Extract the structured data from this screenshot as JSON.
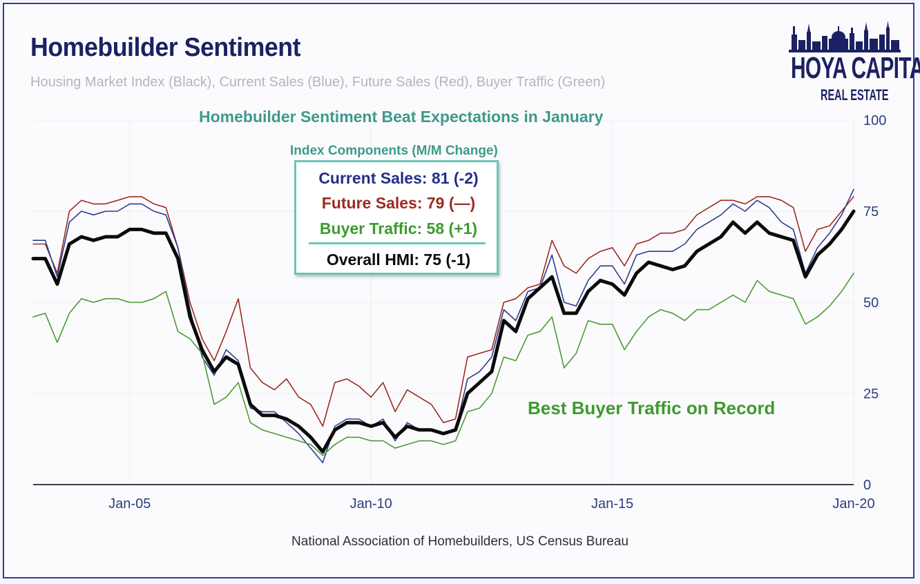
{
  "title": "Homebuilder Sentiment",
  "subtitle": "Housing Market Index (Black), Current Sales (Blue), Future Sales (Red), Buyer Traffic (Green)",
  "logo": {
    "line1": "HOYA CAPITAL",
    "line2": "REAL ESTATE"
  },
  "annotations": {
    "headline": "Homebuilder Sentiment Beat Expectations in January",
    "components_title": "Index Components (M/M Change)",
    "current_sales": "Current Sales: 81 (-2)",
    "future_sales": "Future Sales: 79 (—)",
    "buyer_traffic": "Buyer Traffic: 58 (+1)",
    "overall": "Overall HMI: 75 (-1)",
    "best_traffic": "Best Buyer Traffic on Record"
  },
  "source": "National Association of Homebuilders, US Census Bureau",
  "colors": {
    "hmi": "#0b0b0b",
    "current": "#2b3d8f",
    "future": "#9c2a22",
    "traffic": "#4a9a32",
    "teal": "#3d9a8c",
    "navy": "#1c2163"
  },
  "chart_data": {
    "type": "line",
    "title": "Homebuilder Sentiment",
    "xlabel": "",
    "ylabel": "",
    "xlim": [
      2003.0,
      2020.0
    ],
    "ylim": [
      0,
      100
    ],
    "x_ticks": [
      {
        "value": 2005.0,
        "label": "Jan-05"
      },
      {
        "value": 2010.0,
        "label": "Jan-10"
      },
      {
        "value": 2015.0,
        "label": "Jan-15"
      },
      {
        "value": 2020.0,
        "label": "Jan-20"
      }
    ],
    "y_ticks": [
      {
        "value": 0,
        "label": "0"
      },
      {
        "value": 25,
        "label": "25"
      },
      {
        "value": 50,
        "label": "50"
      },
      {
        "value": 75,
        "label": "75"
      },
      {
        "value": 100,
        "label": "100"
      }
    ],
    "grid": true,
    "series": [
      {
        "name": "Future Sales",
        "key": "future",
        "x": [
          2003.0,
          2003.25,
          2003.5,
          2003.75,
          2004.0,
          2004.25,
          2004.5,
          2004.75,
          2005.0,
          2005.25,
          2005.5,
          2005.75,
          2006.0,
          2006.25,
          2006.5,
          2006.75,
          2007.0,
          2007.25,
          2007.5,
          2007.75,
          2008.0,
          2008.25,
          2008.5,
          2008.75,
          2009.0,
          2009.25,
          2009.5,
          2009.75,
          2010.0,
          2010.25,
          2010.5,
          2010.75,
          2011.0,
          2011.25,
          2011.5,
          2011.75,
          2012.0,
          2012.25,
          2012.5,
          2012.75,
          2013.0,
          2013.25,
          2013.5,
          2013.75,
          2014.0,
          2014.25,
          2014.5,
          2014.75,
          2015.0,
          2015.25,
          2015.5,
          2015.75,
          2016.0,
          2016.25,
          2016.5,
          2016.75,
          2017.0,
          2017.25,
          2017.5,
          2017.75,
          2018.0,
          2018.25,
          2018.5,
          2018.75,
          2019.0,
          2019.25,
          2019.5,
          2019.75,
          2020.0
        ],
        "values": [
          66,
          66,
          58,
          75,
          78,
          77,
          77,
          78,
          79,
          79,
          77,
          76,
          65,
          50,
          40,
          34,
          42,
          51,
          32,
          28,
          26,
          29,
          24,
          22,
          16,
          28,
          29,
          27,
          24,
          28,
          20,
          26,
          24,
          22,
          17,
          18,
          35,
          36,
          37,
          50,
          51,
          54,
          55,
          67,
          60,
          58,
          62,
          64,
          65,
          60,
          66,
          67,
          69,
          69,
          70,
          74,
          76,
          78,
          78,
          77,
          79,
          79,
          78,
          76,
          64,
          70,
          71,
          75,
          79
        ]
      },
      {
        "name": "Current Sales",
        "key": "current",
        "x": [
          2003.0,
          2003.25,
          2003.5,
          2003.75,
          2004.0,
          2004.25,
          2004.5,
          2004.75,
          2005.0,
          2005.25,
          2005.5,
          2005.75,
          2006.0,
          2006.25,
          2006.5,
          2006.75,
          2007.0,
          2007.25,
          2007.5,
          2007.75,
          2008.0,
          2008.25,
          2008.5,
          2008.75,
          2009.0,
          2009.25,
          2009.5,
          2009.75,
          2010.0,
          2010.25,
          2010.5,
          2010.75,
          2011.0,
          2011.25,
          2011.5,
          2011.75,
          2012.0,
          2012.25,
          2012.5,
          2012.75,
          2013.0,
          2013.25,
          2013.5,
          2013.75,
          2014.0,
          2014.25,
          2014.5,
          2014.75,
          2015.0,
          2015.25,
          2015.5,
          2015.75,
          2016.0,
          2016.25,
          2016.5,
          2016.75,
          2017.0,
          2017.25,
          2017.5,
          2017.75,
          2018.0,
          2018.25,
          2018.5,
          2018.75,
          2019.0,
          2019.25,
          2019.5,
          2019.75,
          2020.0
        ],
        "values": [
          67,
          67,
          57,
          72,
          75,
          74,
          75,
          75,
          77,
          77,
          75,
          74,
          65,
          48,
          35,
          30,
          37,
          34,
          21,
          20,
          20,
          17,
          14,
          10,
          6,
          16,
          18,
          18,
          16,
          18,
          12,
          17,
          15,
          15,
          14,
          15,
          29,
          31,
          35,
          48,
          45,
          53,
          54,
          63,
          50,
          49,
          56,
          60,
          60,
          55,
          63,
          64,
          64,
          64,
          66,
          70,
          72,
          74,
          77,
          75,
          78,
          76,
          72,
          70,
          58,
          65,
          69,
          74,
          81
        ]
      },
      {
        "name": "Buyer Traffic",
        "key": "traffic",
        "x": [
          2003.0,
          2003.25,
          2003.5,
          2003.75,
          2004.0,
          2004.25,
          2004.5,
          2004.75,
          2005.0,
          2005.25,
          2005.5,
          2005.75,
          2006.0,
          2006.25,
          2006.5,
          2006.75,
          2007.0,
          2007.25,
          2007.5,
          2007.75,
          2008.0,
          2008.25,
          2008.5,
          2008.75,
          2009.0,
          2009.25,
          2009.5,
          2009.75,
          2010.0,
          2010.25,
          2010.5,
          2010.75,
          2011.0,
          2011.25,
          2011.5,
          2011.75,
          2012.0,
          2012.25,
          2012.5,
          2012.75,
          2013.0,
          2013.25,
          2013.5,
          2013.75,
          2014.0,
          2014.25,
          2014.5,
          2014.75,
          2015.0,
          2015.25,
          2015.5,
          2015.75,
          2016.0,
          2016.25,
          2016.5,
          2016.75,
          2017.0,
          2017.25,
          2017.5,
          2017.75,
          2018.0,
          2018.25,
          2018.5,
          2018.75,
          2019.0,
          2019.25,
          2019.5,
          2019.75,
          2020.0
        ],
        "values": [
          46,
          47,
          39,
          47,
          51,
          50,
          51,
          51,
          50,
          50,
          51,
          53,
          42,
          40,
          36,
          22,
          24,
          28,
          17,
          15,
          14,
          13,
          12,
          11,
          8,
          11,
          13,
          13,
          12,
          12,
          10,
          11,
          12,
          12,
          11,
          12,
          20,
          21,
          25,
          35,
          34,
          41,
          42,
          46,
          32,
          36,
          45,
          44,
          44,
          37,
          42,
          46,
          48,
          47,
          45,
          48,
          48,
          50,
          52,
          50,
          56,
          53,
          52,
          51,
          44,
          46,
          49,
          53,
          58
        ]
      },
      {
        "name": "Housing Market Index",
        "key": "hmi",
        "x": [
          2003.0,
          2003.25,
          2003.5,
          2003.75,
          2004.0,
          2004.25,
          2004.5,
          2004.75,
          2005.0,
          2005.25,
          2005.5,
          2005.75,
          2006.0,
          2006.25,
          2006.5,
          2006.75,
          2007.0,
          2007.25,
          2007.5,
          2007.75,
          2008.0,
          2008.25,
          2008.5,
          2008.75,
          2009.0,
          2009.25,
          2009.5,
          2009.75,
          2010.0,
          2010.25,
          2010.5,
          2010.75,
          2011.0,
          2011.25,
          2011.5,
          2011.75,
          2012.0,
          2012.25,
          2012.5,
          2012.75,
          2013.0,
          2013.25,
          2013.5,
          2013.75,
          2014.0,
          2014.25,
          2014.5,
          2014.75,
          2015.0,
          2015.25,
          2015.5,
          2015.75,
          2016.0,
          2016.25,
          2016.5,
          2016.75,
          2017.0,
          2017.25,
          2017.5,
          2017.75,
          2018.0,
          2018.25,
          2018.5,
          2018.75,
          2019.0,
          2019.25,
          2019.5,
          2019.75,
          2020.0
        ],
        "values": [
          62,
          62,
          55,
          66,
          68,
          67,
          68,
          68,
          70,
          70,
          69,
          69,
          62,
          46,
          37,
          31,
          35,
          33,
          22,
          19,
          19,
          18,
          16,
          13,
          9,
          15,
          17,
          17,
          16,
          17,
          13,
          16,
          15,
          15,
          14,
          15,
          25,
          28,
          31,
          45,
          42,
          51,
          54,
          57,
          47,
          47,
          53,
          56,
          55,
          52,
          58,
          61,
          60,
          59,
          60,
          64,
          66,
          68,
          72,
          69,
          72,
          69,
          68,
          67,
          57,
          63,
          66,
          70,
          75
        ]
      }
    ]
  }
}
